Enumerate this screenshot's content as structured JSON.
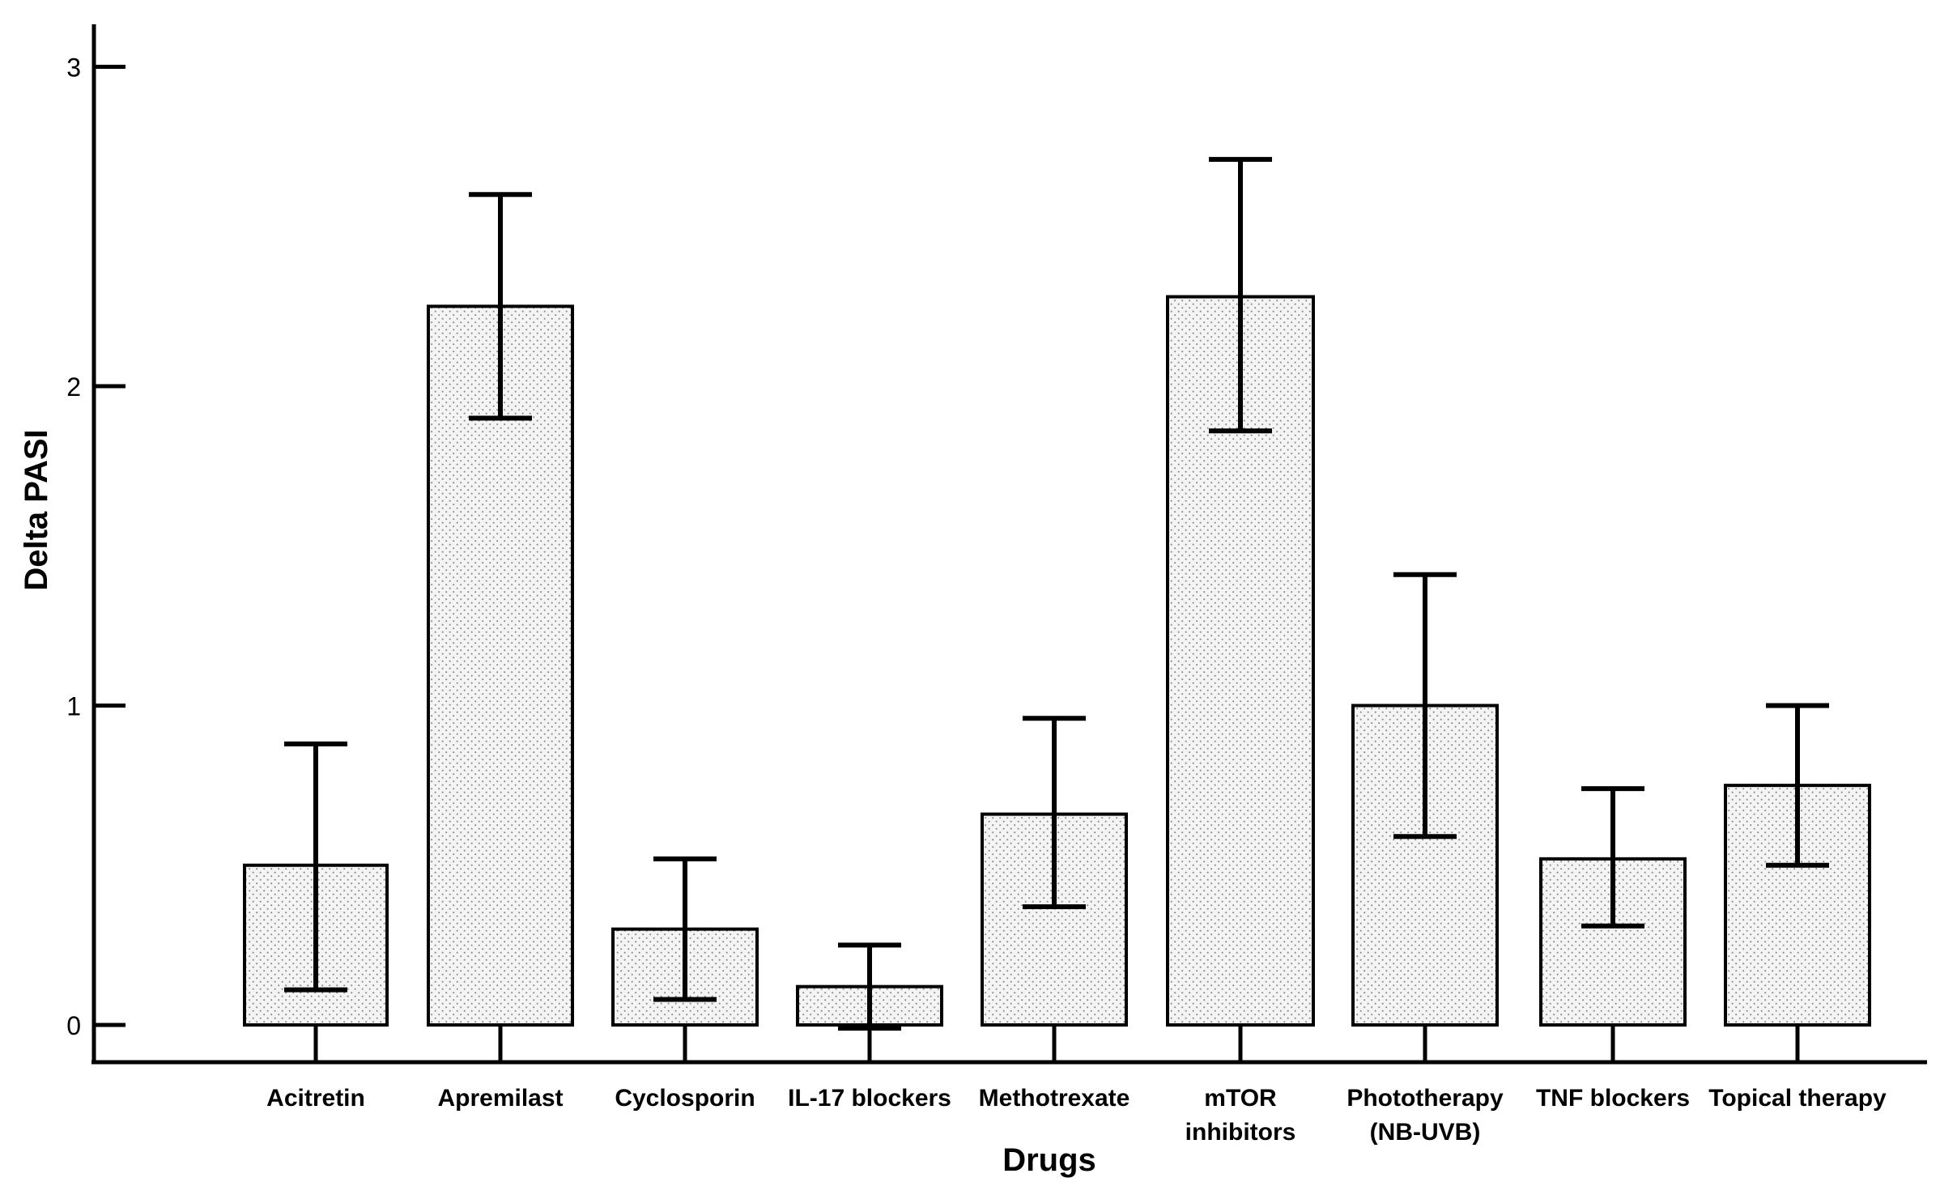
{
  "chart_data": {
    "type": "bar",
    "title": "",
    "xlabel": "Drugs",
    "ylabel": "Delta PASI",
    "ylim": [
      -0.12,
      3.1
    ],
    "yticks": [
      0,
      1,
      2,
      3
    ],
    "grid": false,
    "legend": "none",
    "error_bars": true,
    "categories": [
      [
        "Acitretin"
      ],
      [
        "Apremilast"
      ],
      [
        "Cyclosporin"
      ],
      [
        "IL-17 blockers"
      ],
      [
        "Methotrexate"
      ],
      [
        "mTOR",
        "inhibitors"
      ],
      [
        "Phototherapy",
        "(NB-UVB)"
      ],
      [
        "TNF blockers"
      ],
      [
        "Topical therapy"
      ]
    ],
    "values": [
      0.5,
      2.25,
      0.3,
      0.12,
      0.66,
      2.28,
      1.0,
      0.52,
      0.75
    ],
    "error_low": [
      0.11,
      1.9,
      0.08,
      -0.01,
      0.37,
      1.86,
      0.59,
      0.31,
      0.5
    ],
    "error_high": [
      0.88,
      2.6,
      0.52,
      0.25,
      0.96,
      2.71,
      1.41,
      0.74,
      1.0
    ],
    "colors": {
      "bar_fill": "#f4f4f4",
      "bar_dots": "#8a8a8a",
      "stroke": "#000000"
    }
  }
}
